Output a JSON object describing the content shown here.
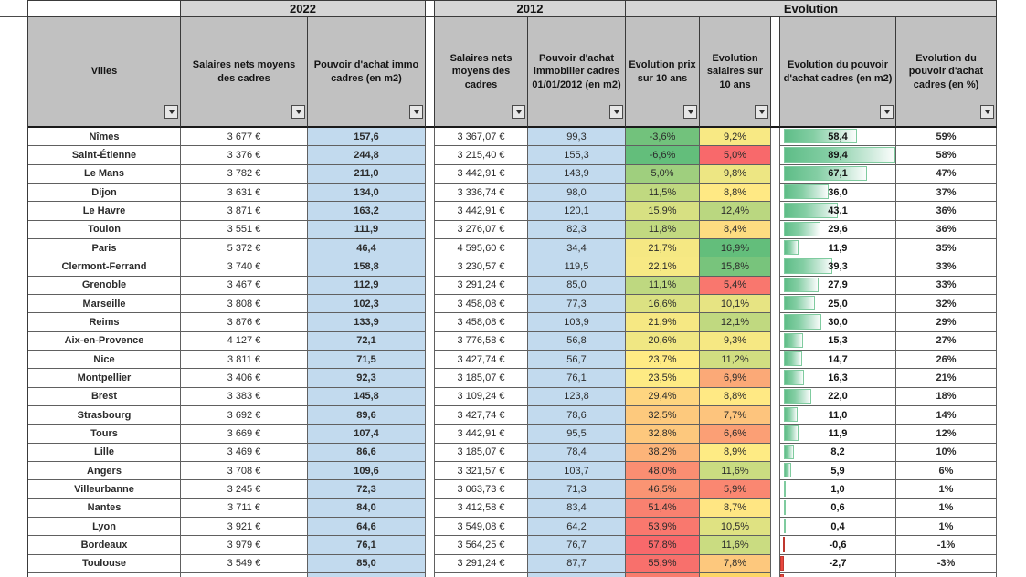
{
  "table": {
    "groups": [
      {
        "label": "2022"
      },
      {
        "label": "2012"
      },
      {
        "label": "Evolution"
      }
    ],
    "columns": [
      {
        "id": "ville",
        "label": "Villes"
      },
      {
        "id": "salaires_2022",
        "label": "Salaires nets moyens des cadres"
      },
      {
        "id": "pouvoir_achat_2022_m2",
        "label": "Pouvoir d'achat immo cadres (en m2)"
      },
      {
        "id": "salaires_2012",
        "label": "Salaires nets moyens des cadres"
      },
      {
        "id": "pouvoir_achat_2012_m2",
        "label": "Pouvoir d'achat immobilier cadres 01/01/2012 (en m2)"
      },
      {
        "id": "evolution_prix",
        "label": "Evolution prix sur 10 ans"
      },
      {
        "id": "evolution_salaires",
        "label": "Evolution salaires sur 10 ans"
      },
      {
        "id": "evolution_pouvoir_achat_m2",
        "label": "Evolution du pouvoir d'achat cadres (en m2)"
      },
      {
        "id": "evolution_pouvoir_achat_pct",
        "label": "Evolution du pouvoir d'achat cadres (en %)"
      }
    ],
    "rows": [
      {
        "ville": "Nîmes",
        "salaires_2022": "3 677 €",
        "pouvoir_achat_2022_m2": "157,6",
        "salaires_2012": "3 367,07 €",
        "pouvoir_achat_2012_m2": "99,3",
        "evolution_prix": "-3,6%",
        "evolution_prix_value": -3.6,
        "evolution_salaires": "9,2%",
        "evolution_salaires_value": 9.2,
        "evolution_pouvoir_achat_m2": "58,4",
        "evolution_pouvoir_achat_m2_value": 58.4,
        "evolution_pouvoir_achat_pct": "59%"
      },
      {
        "ville": "Saint-Étienne",
        "salaires_2022": "3 376 €",
        "pouvoir_achat_2022_m2": "244,8",
        "salaires_2012": "3 215,40 €",
        "pouvoir_achat_2012_m2": "155,3",
        "evolution_prix": "-6,6%",
        "evolution_prix_value": -6.6,
        "evolution_salaires": "5,0%",
        "evolution_salaires_value": 5.0,
        "evolution_pouvoir_achat_m2": "89,4",
        "evolution_pouvoir_achat_m2_value": 89.4,
        "evolution_pouvoir_achat_pct": "58%"
      },
      {
        "ville": "Le Mans",
        "salaires_2022": "3 782 €",
        "pouvoir_achat_2022_m2": "211,0",
        "salaires_2012": "3 442,91 €",
        "pouvoir_achat_2012_m2": "143,9",
        "evolution_prix": "5,0%",
        "evolution_prix_value": 5.0,
        "evolution_salaires": "9,8%",
        "evolution_salaires_value": 9.8,
        "evolution_pouvoir_achat_m2": "67,1",
        "evolution_pouvoir_achat_m2_value": 67.1,
        "evolution_pouvoir_achat_pct": "47%"
      },
      {
        "ville": "Dijon",
        "salaires_2022": "3 631 €",
        "pouvoir_achat_2022_m2": "134,0",
        "salaires_2012": "3 336,74 €",
        "pouvoir_achat_2012_m2": "98,0",
        "evolution_prix": "11,5%",
        "evolution_prix_value": 11.5,
        "evolution_salaires": "8,8%",
        "evolution_salaires_value": 8.8,
        "evolution_pouvoir_achat_m2": "36,0",
        "evolution_pouvoir_achat_m2_value": 36.0,
        "evolution_pouvoir_achat_pct": "37%"
      },
      {
        "ville": "Le Havre",
        "salaires_2022": "3 871 €",
        "pouvoir_achat_2022_m2": "163,2",
        "salaires_2012": "3 442,91 €",
        "pouvoir_achat_2012_m2": "120,1",
        "evolution_prix": "15,9%",
        "evolution_prix_value": 15.9,
        "evolution_salaires": "12,4%",
        "evolution_salaires_value": 12.4,
        "evolution_pouvoir_achat_m2": "43,1",
        "evolution_pouvoir_achat_m2_value": 43.1,
        "evolution_pouvoir_achat_pct": "36%"
      },
      {
        "ville": "Toulon",
        "salaires_2022": "3 551 €",
        "pouvoir_achat_2022_m2": "111,9",
        "salaires_2012": "3 276,07 €",
        "pouvoir_achat_2012_m2": "82,3",
        "evolution_prix": "11,8%",
        "evolution_prix_value": 11.8,
        "evolution_salaires": "8,4%",
        "evolution_salaires_value": 8.4,
        "evolution_pouvoir_achat_m2": "29,6",
        "evolution_pouvoir_achat_m2_value": 29.6,
        "evolution_pouvoir_achat_pct": "36%"
      },
      {
        "ville": "Paris",
        "salaires_2022": "5 372 €",
        "pouvoir_achat_2022_m2": "46,4",
        "salaires_2012": "4 595,60 €",
        "pouvoir_achat_2012_m2": "34,4",
        "evolution_prix": "21,7%",
        "evolution_prix_value": 21.7,
        "evolution_salaires": "16,9%",
        "evolution_salaires_value": 16.9,
        "evolution_pouvoir_achat_m2": "11,9",
        "evolution_pouvoir_achat_m2_value": 11.9,
        "evolution_pouvoir_achat_pct": "35%"
      },
      {
        "ville": "Clermont-Ferrand",
        "salaires_2022": "3 740 €",
        "pouvoir_achat_2022_m2": "158,8",
        "salaires_2012": "3 230,57 €",
        "pouvoir_achat_2012_m2": "119,5",
        "evolution_prix": "22,1%",
        "evolution_prix_value": 22.1,
        "evolution_salaires": "15,8%",
        "evolution_salaires_value": 15.8,
        "evolution_pouvoir_achat_m2": "39,3",
        "evolution_pouvoir_achat_m2_value": 39.3,
        "evolution_pouvoir_achat_pct": "33%"
      },
      {
        "ville": "Grenoble",
        "salaires_2022": "3 467 €",
        "pouvoir_achat_2022_m2": "112,9",
        "salaires_2012": "3 291,24 €",
        "pouvoir_achat_2012_m2": "85,0",
        "evolution_prix": "11,1%",
        "evolution_prix_value": 11.1,
        "evolution_salaires": "5,4%",
        "evolution_salaires_value": 5.4,
        "evolution_pouvoir_achat_m2": "27,9",
        "evolution_pouvoir_achat_m2_value": 27.9,
        "evolution_pouvoir_achat_pct": "33%"
      },
      {
        "ville": "Marseille",
        "salaires_2022": "3 808 €",
        "pouvoir_achat_2022_m2": "102,3",
        "salaires_2012": "3 458,08 €",
        "pouvoir_achat_2012_m2": "77,3",
        "evolution_prix": "16,6%",
        "evolution_prix_value": 16.6,
        "evolution_salaires": "10,1%",
        "evolution_salaires_value": 10.1,
        "evolution_pouvoir_achat_m2": "25,0",
        "evolution_pouvoir_achat_m2_value": 25.0,
        "evolution_pouvoir_achat_pct": "32%"
      },
      {
        "ville": "Reims",
        "salaires_2022": "3 876 €",
        "pouvoir_achat_2022_m2": "133,9",
        "salaires_2012": "3 458,08 €",
        "pouvoir_achat_2012_m2": "103,9",
        "evolution_prix": "21,9%",
        "evolution_prix_value": 21.9,
        "evolution_salaires": "12,1%",
        "evolution_salaires_value": 12.1,
        "evolution_pouvoir_achat_m2": "30,0",
        "evolution_pouvoir_achat_m2_value": 30.0,
        "evolution_pouvoir_achat_pct": "29%"
      },
      {
        "ville": "Aix-en-Provence",
        "salaires_2022": "4 127 €",
        "pouvoir_achat_2022_m2": "72,1",
        "salaires_2012": "3 776,58 €",
        "pouvoir_achat_2012_m2": "56,8",
        "evolution_prix": "20,6%",
        "evolution_prix_value": 20.6,
        "evolution_salaires": "9,3%",
        "evolution_salaires_value": 9.3,
        "evolution_pouvoir_achat_m2": "15,3",
        "evolution_pouvoir_achat_m2_value": 15.3,
        "evolution_pouvoir_achat_pct": "27%"
      },
      {
        "ville": "Nice",
        "salaires_2022": "3 811 €",
        "pouvoir_achat_2022_m2": "71,5",
        "salaires_2012": "3 427,74 €",
        "pouvoir_achat_2012_m2": "56,7",
        "evolution_prix": "23,7%",
        "evolution_prix_value": 23.7,
        "evolution_salaires": "11,2%",
        "evolution_salaires_value": 11.2,
        "evolution_pouvoir_achat_m2": "14,7",
        "evolution_pouvoir_achat_m2_value": 14.7,
        "evolution_pouvoir_achat_pct": "26%"
      },
      {
        "ville": "Montpellier",
        "salaires_2022": "3 406 €",
        "pouvoir_achat_2022_m2": "92,3",
        "salaires_2012": "3 185,07 €",
        "pouvoir_achat_2012_m2": "76,1",
        "evolution_prix": "23,5%",
        "evolution_prix_value": 23.5,
        "evolution_salaires": "6,9%",
        "evolution_salaires_value": 6.9,
        "evolution_pouvoir_achat_m2": "16,3",
        "evolution_pouvoir_achat_m2_value": 16.3,
        "evolution_pouvoir_achat_pct": "21%"
      },
      {
        "ville": "Brest",
        "salaires_2022": "3 383 €",
        "pouvoir_achat_2022_m2": "145,8",
        "salaires_2012": "3 109,24 €",
        "pouvoir_achat_2012_m2": "123,8",
        "evolution_prix": "29,4%",
        "evolution_prix_value": 29.4,
        "evolution_salaires": "8,8%",
        "evolution_salaires_value": 8.8,
        "evolution_pouvoir_achat_m2": "22,0",
        "evolution_pouvoir_achat_m2_value": 22.0,
        "evolution_pouvoir_achat_pct": "18%"
      },
      {
        "ville": "Strasbourg",
        "salaires_2022": "3 692 €",
        "pouvoir_achat_2022_m2": "89,6",
        "salaires_2012": "3 427,74 €",
        "pouvoir_achat_2012_m2": "78,6",
        "evolution_prix": "32,5%",
        "evolution_prix_value": 32.5,
        "evolution_salaires": "7,7%",
        "evolution_salaires_value": 7.7,
        "evolution_pouvoir_achat_m2": "11,0",
        "evolution_pouvoir_achat_m2_value": 11.0,
        "evolution_pouvoir_achat_pct": "14%"
      },
      {
        "ville": "Tours",
        "salaires_2022": "3 669 €",
        "pouvoir_achat_2022_m2": "107,4",
        "salaires_2012": "3 442,91 €",
        "pouvoir_achat_2012_m2": "95,5",
        "evolution_prix": "32,8%",
        "evolution_prix_value": 32.8,
        "evolution_salaires": "6,6%",
        "evolution_salaires_value": 6.6,
        "evolution_pouvoir_achat_m2": "11,9",
        "evolution_pouvoir_achat_m2_value": 11.9,
        "evolution_pouvoir_achat_pct": "12%"
      },
      {
        "ville": "Lille",
        "salaires_2022": "3 469 €",
        "pouvoir_achat_2022_m2": "86,6",
        "salaires_2012": "3 185,07 €",
        "pouvoir_achat_2012_m2": "78,4",
        "evolution_prix": "38,2%",
        "evolution_prix_value": 38.2,
        "evolution_salaires": "8,9%",
        "evolution_salaires_value": 8.9,
        "evolution_pouvoir_achat_m2": "8,2",
        "evolution_pouvoir_achat_m2_value": 8.2,
        "evolution_pouvoir_achat_pct": "10%"
      },
      {
        "ville": "Angers",
        "salaires_2022": "3 708 €",
        "pouvoir_achat_2022_m2": "109,6",
        "salaires_2012": "3 321,57 €",
        "pouvoir_achat_2012_m2": "103,7",
        "evolution_prix": "48,0%",
        "evolution_prix_value": 48.0,
        "evolution_salaires": "11,6%",
        "evolution_salaires_value": 11.6,
        "evolution_pouvoir_achat_m2": "5,9",
        "evolution_pouvoir_achat_m2_value": 5.9,
        "evolution_pouvoir_achat_pct": "6%"
      },
      {
        "ville": "Villeurbanne",
        "salaires_2022": "3 245 €",
        "pouvoir_achat_2022_m2": "72,3",
        "salaires_2012": "3 063,73 €",
        "pouvoir_achat_2012_m2": "71,3",
        "evolution_prix": "46,5%",
        "evolution_prix_value": 46.5,
        "evolution_salaires": "5,9%",
        "evolution_salaires_value": 5.9,
        "evolution_pouvoir_achat_m2": "1,0",
        "evolution_pouvoir_achat_m2_value": 1.0,
        "evolution_pouvoir_achat_pct": "1%"
      },
      {
        "ville": "Nantes",
        "salaires_2022": "3 711 €",
        "pouvoir_achat_2022_m2": "84,0",
        "salaires_2012": "3 412,58 €",
        "pouvoir_achat_2012_m2": "83,4",
        "evolution_prix": "51,4%",
        "evolution_prix_value": 51.4,
        "evolution_salaires": "8,7%",
        "evolution_salaires_value": 8.7,
        "evolution_pouvoir_achat_m2": "0,6",
        "evolution_pouvoir_achat_m2_value": 0.6,
        "evolution_pouvoir_achat_pct": "1%"
      },
      {
        "ville": "Lyon",
        "salaires_2022": "3 921 €",
        "pouvoir_achat_2022_m2": "64,6",
        "salaires_2012": "3 549,08 €",
        "pouvoir_achat_2012_m2": "64,2",
        "evolution_prix": "53,9%",
        "evolution_prix_value": 53.9,
        "evolution_salaires": "10,5%",
        "evolution_salaires_value": 10.5,
        "evolution_pouvoir_achat_m2": "0,4",
        "evolution_pouvoir_achat_m2_value": 0.4,
        "evolution_pouvoir_achat_pct": "1%"
      },
      {
        "ville": "Bordeaux",
        "salaires_2022": "3 979 €",
        "pouvoir_achat_2022_m2": "76,1",
        "salaires_2012": "3 564,25 €",
        "pouvoir_achat_2012_m2": "76,7",
        "evolution_prix": "57,8%",
        "evolution_prix_value": 57.8,
        "evolution_salaires": "11,6%",
        "evolution_salaires_value": 11.6,
        "evolution_pouvoir_achat_m2": "-0,6",
        "evolution_pouvoir_achat_m2_value": -0.6,
        "evolution_pouvoir_achat_pct": "-1%"
      },
      {
        "ville": "Toulouse",
        "salaires_2022": "3 549 €",
        "pouvoir_achat_2022_m2": "85,0",
        "salaires_2012": "3 291,24 €",
        "pouvoir_achat_2012_m2": "87,7",
        "evolution_prix": "55,9%",
        "evolution_prix_value": 55.9,
        "evolution_salaires": "7,8%",
        "evolution_salaires_value": 7.8,
        "evolution_pouvoir_achat_m2": "-2,7",
        "evolution_pouvoir_achat_m2_value": -2.7,
        "evolution_pouvoir_achat_pct": "-3%"
      }
    ],
    "conditional_formats": {
      "prix_scale": {
        "stops": [
          -6.6,
          23.6,
          57.8
        ],
        "colors": [
          "#63BE7B",
          "#FFEB84",
          "#F8696B"
        ]
      },
      "salaires_scale": {
        "stops": [
          5.0,
          8.85,
          16.9
        ],
        "colors": [
          "#F8696B",
          "#FFEB84",
          "#63BE7B"
        ]
      },
      "databar": {
        "min": -2.7,
        "max": 89.4,
        "positive_color": "#5EBD87",
        "negative_color": "#E8483F"
      }
    },
    "partial_row": {
      "prix_color": "#F87C6D",
      "salaires_color": "#FDD567",
      "has_negative_bar_sliver": true
    },
    "colors": {
      "blue_fill": "#C2DAEE",
      "header_fill": "#C1C1C1",
      "group_fill": "#D5D5D5"
    }
  }
}
